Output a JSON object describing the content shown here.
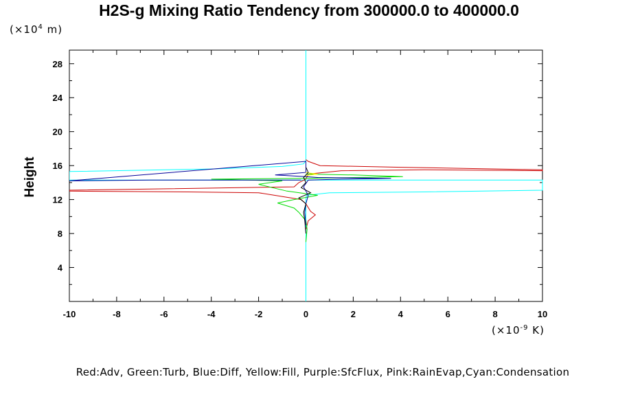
{
  "chart_data": {
    "type": "line",
    "title": "H2S-g Mixing Ratio Tendency from 300000.0 to 400000.0",
    "ylabel": "Height",
    "y_unit_prefix": "(×10",
    "y_unit_exp": "4",
    "y_unit_suffix": " m)",
    "x_unit_prefix": "(×10",
    "x_unit_exp": "-9",
    "x_unit_suffix": " K)",
    "xlim": [
      -10,
      10
    ],
    "ylim": [
      0,
      29.6
    ],
    "x_ticks": [
      "-10",
      "-8",
      "-6",
      "-4",
      "-2",
      "0",
      "2",
      "4",
      "6",
      "8",
      "10"
    ],
    "y_ticks": [
      "4",
      "8",
      "12",
      "16",
      "20",
      "24",
      "28"
    ],
    "legend_text": "Red:Adv, Green:Turb, Blue:Diff, Yellow:Fill, Purple:SfcFlux, Pink:RainEvap,Cyan:Condensation",
    "series": [
      {
        "color": "#00ffff",
        "points": [
          [
            0,
            0
          ],
          [
            0,
            12
          ],
          [
            0.02,
            12.5
          ],
          [
            1,
            12.8
          ],
          [
            5,
            12.9
          ],
          [
            10,
            13.1
          ],
          [
            10,
            14.3
          ],
          [
            5,
            14.3
          ],
          [
            0,
            14.3
          ],
          [
            -5,
            14.3
          ],
          [
            -10,
            14.3
          ],
          [
            -10,
            15.3
          ],
          [
            -4,
            15.6
          ],
          [
            -1,
            15.9
          ],
          [
            -0.1,
            16.2
          ],
          [
            0,
            16.6
          ],
          [
            0,
            29.6
          ]
        ]
      },
      {
        "color": "#cc0000",
        "points": [
          [
            0,
            8.5
          ],
          [
            0.1,
            9.5
          ],
          [
            0.4,
            10.2
          ],
          [
            0.2,
            10.6
          ],
          [
            0,
            11.5
          ],
          [
            -0.2,
            12.0
          ],
          [
            -2,
            12.8
          ],
          [
            -5,
            12.9
          ],
          [
            -10,
            13.0
          ],
          [
            -10,
            13.1
          ],
          [
            -0.5,
            13.5
          ],
          [
            -0.3,
            14.0
          ],
          [
            0,
            14.4
          ],
          [
            0.1,
            15.0
          ],
          [
            1.5,
            15.4
          ],
          [
            5,
            15.5
          ],
          [
            10,
            15.4
          ],
          [
            10,
            15.5
          ],
          [
            4,
            15.8
          ],
          [
            0.6,
            16.0
          ],
          [
            0.1,
            16.5
          ],
          [
            0,
            16.7
          ]
        ]
      },
      {
        "color": "#00dd00",
        "points": [
          [
            0,
            7.0
          ],
          [
            0.05,
            8.5
          ],
          [
            0,
            9.5
          ],
          [
            -0.3,
            10.5
          ],
          [
            -0.5,
            11.0
          ],
          [
            -1.2,
            11.6
          ],
          [
            -0.5,
            12.0
          ],
          [
            0.5,
            12.5
          ],
          [
            -0.8,
            13.0
          ],
          [
            -2,
            13.8
          ],
          [
            -1,
            14.2
          ],
          [
            -4,
            14.4
          ],
          [
            0,
            14.5
          ],
          [
            2,
            14.6
          ],
          [
            4.1,
            14.7
          ],
          [
            2,
            14.9
          ],
          [
            0,
            15.0
          ]
        ]
      },
      {
        "color": "#000099",
        "points": [
          [
            0,
            9.0
          ],
          [
            -0.05,
            10.5
          ],
          [
            0,
            11.5
          ],
          [
            0.1,
            12.5
          ],
          [
            -0.1,
            13.5
          ],
          [
            0.1,
            14.3
          ],
          [
            1.5,
            14.4
          ],
          [
            3.6,
            14.5
          ],
          [
            0.5,
            14.6
          ],
          [
            0,
            14.7
          ],
          [
            -1.3,
            14.9
          ],
          [
            0,
            15.2
          ],
          [
            0,
            16.5
          ],
          [
            -10,
            14.2
          ],
          [
            -6.6,
            14.3
          ],
          [
            -0.2,
            14.3
          ]
        ]
      },
      {
        "color": "#ffff00",
        "points": [
          [
            0,
            14.8
          ],
          [
            0.2,
            14.9
          ],
          [
            0.5,
            15.0
          ],
          [
            0.2,
            15.1
          ],
          [
            0,
            15.2
          ]
        ]
      },
      {
        "color": "#000000",
        "points": [
          [
            0,
            8.0
          ],
          [
            -0.05,
            9.5
          ],
          [
            -0.1,
            10.5
          ],
          [
            0,
            11.5
          ],
          [
            -0.3,
            12.2
          ],
          [
            0.2,
            12.8
          ],
          [
            -0.2,
            13.4
          ],
          [
            0,
            14.0
          ],
          [
            -0.1,
            14.6
          ],
          [
            0.1,
            15.2
          ],
          [
            0,
            15.8
          ]
        ]
      }
    ]
  }
}
